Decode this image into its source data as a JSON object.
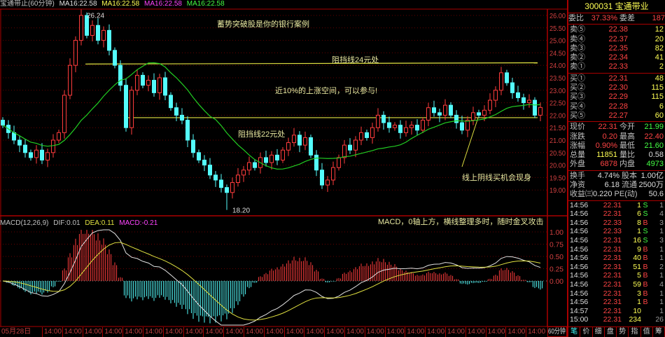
{
  "header": {
    "name": "宝通带止(60分钟)",
    "ma": [
      "MA16:22.58",
      "MA16:22.58",
      "MA16:22.58",
      "MA16:22.58"
    ],
    "ma_colors": [
      "#e0e0e0",
      "#ffff54",
      "#ff44ff",
      "#44ff44"
    ]
  },
  "macd_header": {
    "name": "MACD(12,26,9)",
    "dif": "DIF:0.01",
    "dea": "DEA:0.11",
    "macd": "MACD:-0.21"
  },
  "annotations": {
    "title": "蓄势突破股是你的银行案例",
    "resist24": "阻挡线24元处",
    "upside": "近10%的上涨空间，可以参与!",
    "resist22": "阻挡线22元处",
    "buy": "线上阴线买机会现身",
    "macd_note": "MACD，0轴上方，横线整理多时，随时金叉攻击"
  },
  "chart_data": {
    "type": "candlestick",
    "price_ticks": [
      "26.00",
      "25.50",
      "25.00",
      "24.50",
      "24.00",
      "23.50",
      "23.00",
      "22.50",
      "22.00",
      "21.50",
      "21.00",
      "20.50",
      "20.00",
      "19.50",
      "19.00"
    ],
    "ylim": [
      18.0,
      26.4
    ],
    "closes": [
      21.6,
      21.3,
      21.0,
      20.8,
      20.5,
      20.3,
      20.6,
      20.2,
      20.5,
      21.0,
      21.3,
      22.8,
      24.0,
      25.0,
      26.0,
      25.2,
      25.6,
      25.0,
      25.4,
      24.6,
      24.0,
      23.2,
      21.5,
      23.0,
      23.6,
      23.2,
      23.4,
      22.9,
      23.5,
      22.8,
      22.3,
      22.0,
      21.8,
      21.0,
      20.5,
      20.2,
      20.0,
      19.6,
      19.4,
      19.1,
      18.9,
      19.3,
      19.6,
      19.8,
      20.1,
      19.9,
      20.3,
      20.1,
      20.4,
      20.2,
      20.6,
      20.9,
      21.2,
      20.8,
      21.1,
      20.4,
      19.8,
      19.2,
      19.4,
      19.9,
      20.3,
      20.8,
      20.6,
      21.0,
      21.3,
      21.1,
      21.5,
      22.0,
      21.7,
      21.5,
      21.6,
      21.3,
      21.5,
      21.6,
      21.4,
      21.8,
      22.3,
      22.1,
      22.0,
      22.4,
      22.0,
      21.7,
      21.4,
      21.8,
      22.1,
      22.0,
      22.2,
      22.6,
      23.0,
      23.7,
      23.3,
      22.9,
      22.7,
      22.5,
      22.6,
      22.0,
      22.31
    ],
    "max_high": "26.24",
    "min_low": "18.20",
    "resistance_lines": [
      24.05,
      21.9
    ],
    "macd_ticks": [
      "1.00",
      "0.75",
      "0.50",
      "0.25",
      "0.00"
    ],
    "x_ticks": [
      "05月28日",
      "14:00",
      "14:00",
      "14:00",
      "14:00",
      "14:00",
      "14:00",
      "14:00",
      "14:00",
      "14:00",
      "14:00",
      "14:00",
      "14:00",
      "14:00",
      "14:00",
      "14:00",
      "14:00",
      "14:00",
      "14:00",
      "14:00",
      "14:00",
      "14:00",
      "14:00",
      "14:00",
      "14:00",
      "14:00"
    ],
    "period": "60分钟",
    "colors": {
      "up": "#ff3c3c",
      "down": "#54fcfc",
      "ma": "#22cc22",
      "dif": "#e0e0e0",
      "dea": "#e0e040",
      "line": "#e0e040"
    }
  },
  "quote": {
    "code_name": "300031 宝通带业",
    "wb": {
      "label": "委比",
      "value": "37.33%",
      "label2": "委差",
      "value2": "187"
    },
    "sell": [
      {
        "l": "卖⑤",
        "p": "22.38",
        "v": "12"
      },
      {
        "l": "卖④",
        "p": "22.37",
        "v": "20"
      },
      {
        "l": "卖③",
        "p": "22.35",
        "v": "82"
      },
      {
        "l": "卖②",
        "p": "22.34",
        "v": "41"
      },
      {
        "l": "卖①",
        "p": "22.33",
        "v": "2"
      }
    ],
    "buy": [
      {
        "l": "买①",
        "p": "22.31",
        "v": "48"
      },
      {
        "l": "买②",
        "p": "22.30",
        "v": "115"
      },
      {
        "l": "买③",
        "p": "22.29",
        "v": "115"
      },
      {
        "l": "买④",
        "p": "22.28",
        "v": "6"
      },
      {
        "l": "买⑤",
        "p": "22.27",
        "v": "60"
      }
    ],
    "stats": [
      {
        "l": "现价",
        "v": "22.31",
        "c": "r",
        "l2": "今开",
        "v2": "21.99",
        "c2": "g"
      },
      {
        "l": "涨跌",
        "v": "0.20",
        "c": "r",
        "l2": "最高",
        "v2": "22.40",
        "c2": "r"
      },
      {
        "l": "涨幅",
        "v": "0.90%",
        "c": "r",
        "l2": "最低",
        "v2": "21.60",
        "c2": "g"
      },
      {
        "l": "总量",
        "v": "11851",
        "c": "y",
        "l2": "量比",
        "v2": "0.58",
        "c2": "w"
      },
      {
        "l": "外盘",
        "v": "6878",
        "c": "r",
        "l2": "内盘",
        "v2": "4973",
        "c2": "g"
      }
    ],
    "info": [
      {
        "l": "换手",
        "v": "4.74%",
        "l2": "股本",
        "v2": "1.00亿"
      },
      {
        "l": "净资",
        "v": "6.18",
        "l2": "流通",
        "v2": "2500万"
      },
      {
        "l": "收益㈢",
        "v": "0.220",
        "l2": "PE(动)",
        "v2": "50.6"
      }
    ],
    "ticks": [
      {
        "t": "14:56",
        "p": "22.31",
        "v": "1",
        "s": "S",
        "n": "1"
      },
      {
        "t": "14:56",
        "p": "22.31",
        "v": "6",
        "s": "S",
        "n": "4"
      },
      {
        "t": "14:56",
        "p": "22.33",
        "v": "8",
        "s": "B",
        "n": "3"
      },
      {
        "t": "14:56",
        "p": "22.33",
        "v": "1",
        "s": "S",
        "n": "1"
      },
      {
        "t": "14:56",
        "p": "22.31",
        "v": "16",
        "s": "S",
        "n": "3"
      },
      {
        "t": "14:56",
        "p": "22.31",
        "v": "9",
        "s": "B",
        "n": "1"
      },
      {
        "t": "14:56",
        "p": "22.31",
        "v": "40",
        "s": "B",
        "n": "1"
      },
      {
        "t": "14:56",
        "p": "22.31",
        "v": "51",
        "s": "B",
        "n": "2"
      },
      {
        "t": "14:56",
        "p": "22.31",
        "v": "5",
        "s": "B",
        "n": "1"
      },
      {
        "t": "14:56",
        "p": "22.31",
        "v": "59",
        "s": "B",
        "n": "4"
      },
      {
        "t": "14:56",
        "p": "22.31",
        "v": "3",
        "s": "B",
        "n": "1"
      },
      {
        "t": "14:56",
        "p": "22.31",
        "v": "1",
        "s": "B",
        "n": "1"
      },
      {
        "t": "14:57",
        "p": "22.31",
        "v": "10",
        "s": "",
        "n": "1"
      },
      {
        "t": "15:00",
        "p": "22.31",
        "v": "234",
        "s": "",
        "n": "26"
      }
    ],
    "tabs": [
      "笔",
      "价",
      "细",
      "盘",
      "势",
      "指",
      "值",
      "筹"
    ]
  }
}
